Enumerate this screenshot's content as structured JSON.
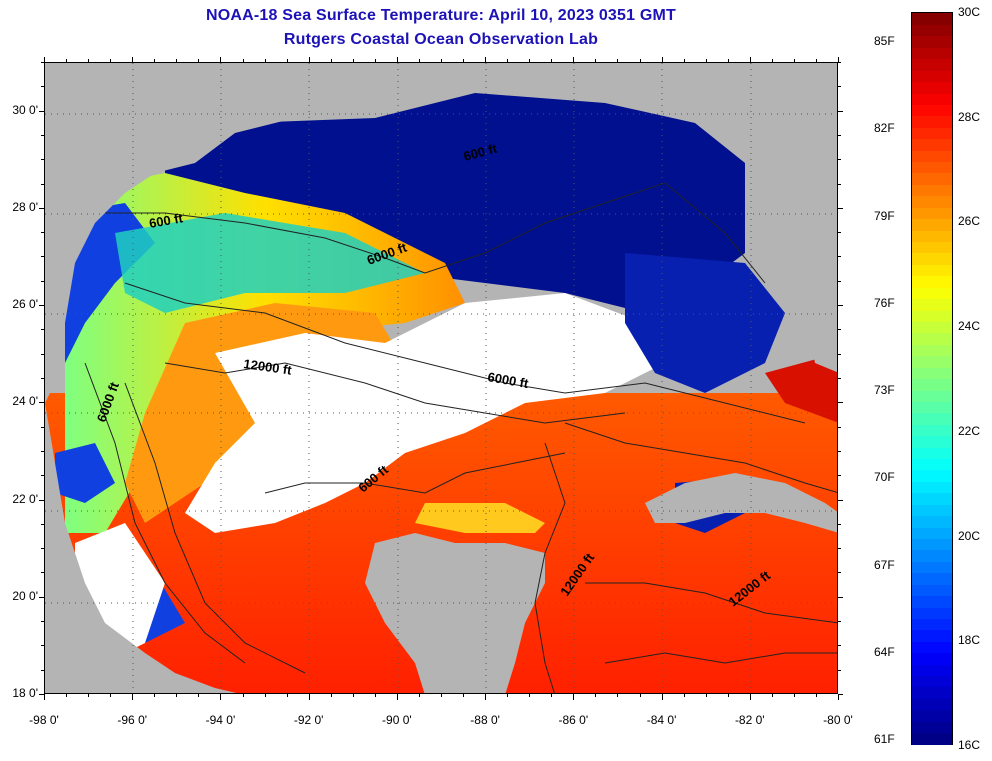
{
  "header": {
    "title_line1": "NOAA-18 Sea Surface Temperature:  April 10, 2023 0351 GMT",
    "title_line2": "Rutgers Coastal Ocean Observation Lab"
  },
  "map": {
    "lon_range": [
      -98,
      -80
    ],
    "lat_range": [
      18,
      31
    ],
    "lat_ticks": [
      {
        "value": 30,
        "label": "30 0'"
      },
      {
        "value": 28,
        "label": "28 0'"
      },
      {
        "value": 26,
        "label": "26 0'"
      },
      {
        "value": 24,
        "label": "24 0'"
      },
      {
        "value": 22,
        "label": "22 0'"
      },
      {
        "value": 20,
        "label": "20 0'"
      },
      {
        "value": 18,
        "label": "18 0'"
      }
    ],
    "lon_ticks": [
      {
        "value": -98,
        "label": "-98 0'"
      },
      {
        "value": -96,
        "label": "-96 0'"
      },
      {
        "value": -94,
        "label": "-94 0'"
      },
      {
        "value": -92,
        "label": "-92 0'"
      },
      {
        "value": -90,
        "label": "-90 0'"
      },
      {
        "value": -88,
        "label": "-88 0'"
      },
      {
        "value": -86,
        "label": "-86 0'"
      },
      {
        "value": -84,
        "label": "-84 0'"
      },
      {
        "value": -82,
        "label": "-82 0'"
      },
      {
        "value": -80,
        "label": "-80 0'"
      }
    ],
    "contour_labels": [
      "600 ft",
      "6000 ft",
      "12000 ft",
      "6000 ft",
      "6000 ft",
      "600 ft",
      "12000 ft",
      "12000 ft",
      "600 ft"
    ],
    "colors": {
      "land": "#b4b4b4",
      "cloud": "#ffffff",
      "grid": "#000000"
    }
  },
  "colorbar": {
    "range_c": [
      16,
      30
    ],
    "fahrenheit_labels": [
      {
        "value_c": 29.44,
        "label": "85F"
      },
      {
        "value_c": 27.78,
        "label": "82F"
      },
      {
        "value_c": 26.11,
        "label": "79F"
      },
      {
        "value_c": 24.44,
        "label": "76F"
      },
      {
        "value_c": 22.78,
        "label": "73F"
      },
      {
        "value_c": 21.11,
        "label": "70F"
      },
      {
        "value_c": 19.44,
        "label": "67F"
      },
      {
        "value_c": 17.78,
        "label": "64F"
      },
      {
        "value_c": 16.11,
        "label": "61F"
      }
    ],
    "celsius_labels": [
      {
        "value_c": 30,
        "label": "30C"
      },
      {
        "value_c": 28,
        "label": "28C"
      },
      {
        "value_c": 26,
        "label": "26C"
      },
      {
        "value_c": 24,
        "label": "24C"
      },
      {
        "value_c": 22,
        "label": "22C"
      },
      {
        "value_c": 20,
        "label": "20C"
      },
      {
        "value_c": 18,
        "label": "18C"
      },
      {
        "value_c": 16,
        "label": "16C"
      }
    ],
    "stops": [
      "#00007f",
      "#0000ff",
      "#0080ff",
      "#00ffff",
      "#80ff80",
      "#ffff00",
      "#ff8000",
      "#ff0000",
      "#7f0000"
    ]
  }
}
